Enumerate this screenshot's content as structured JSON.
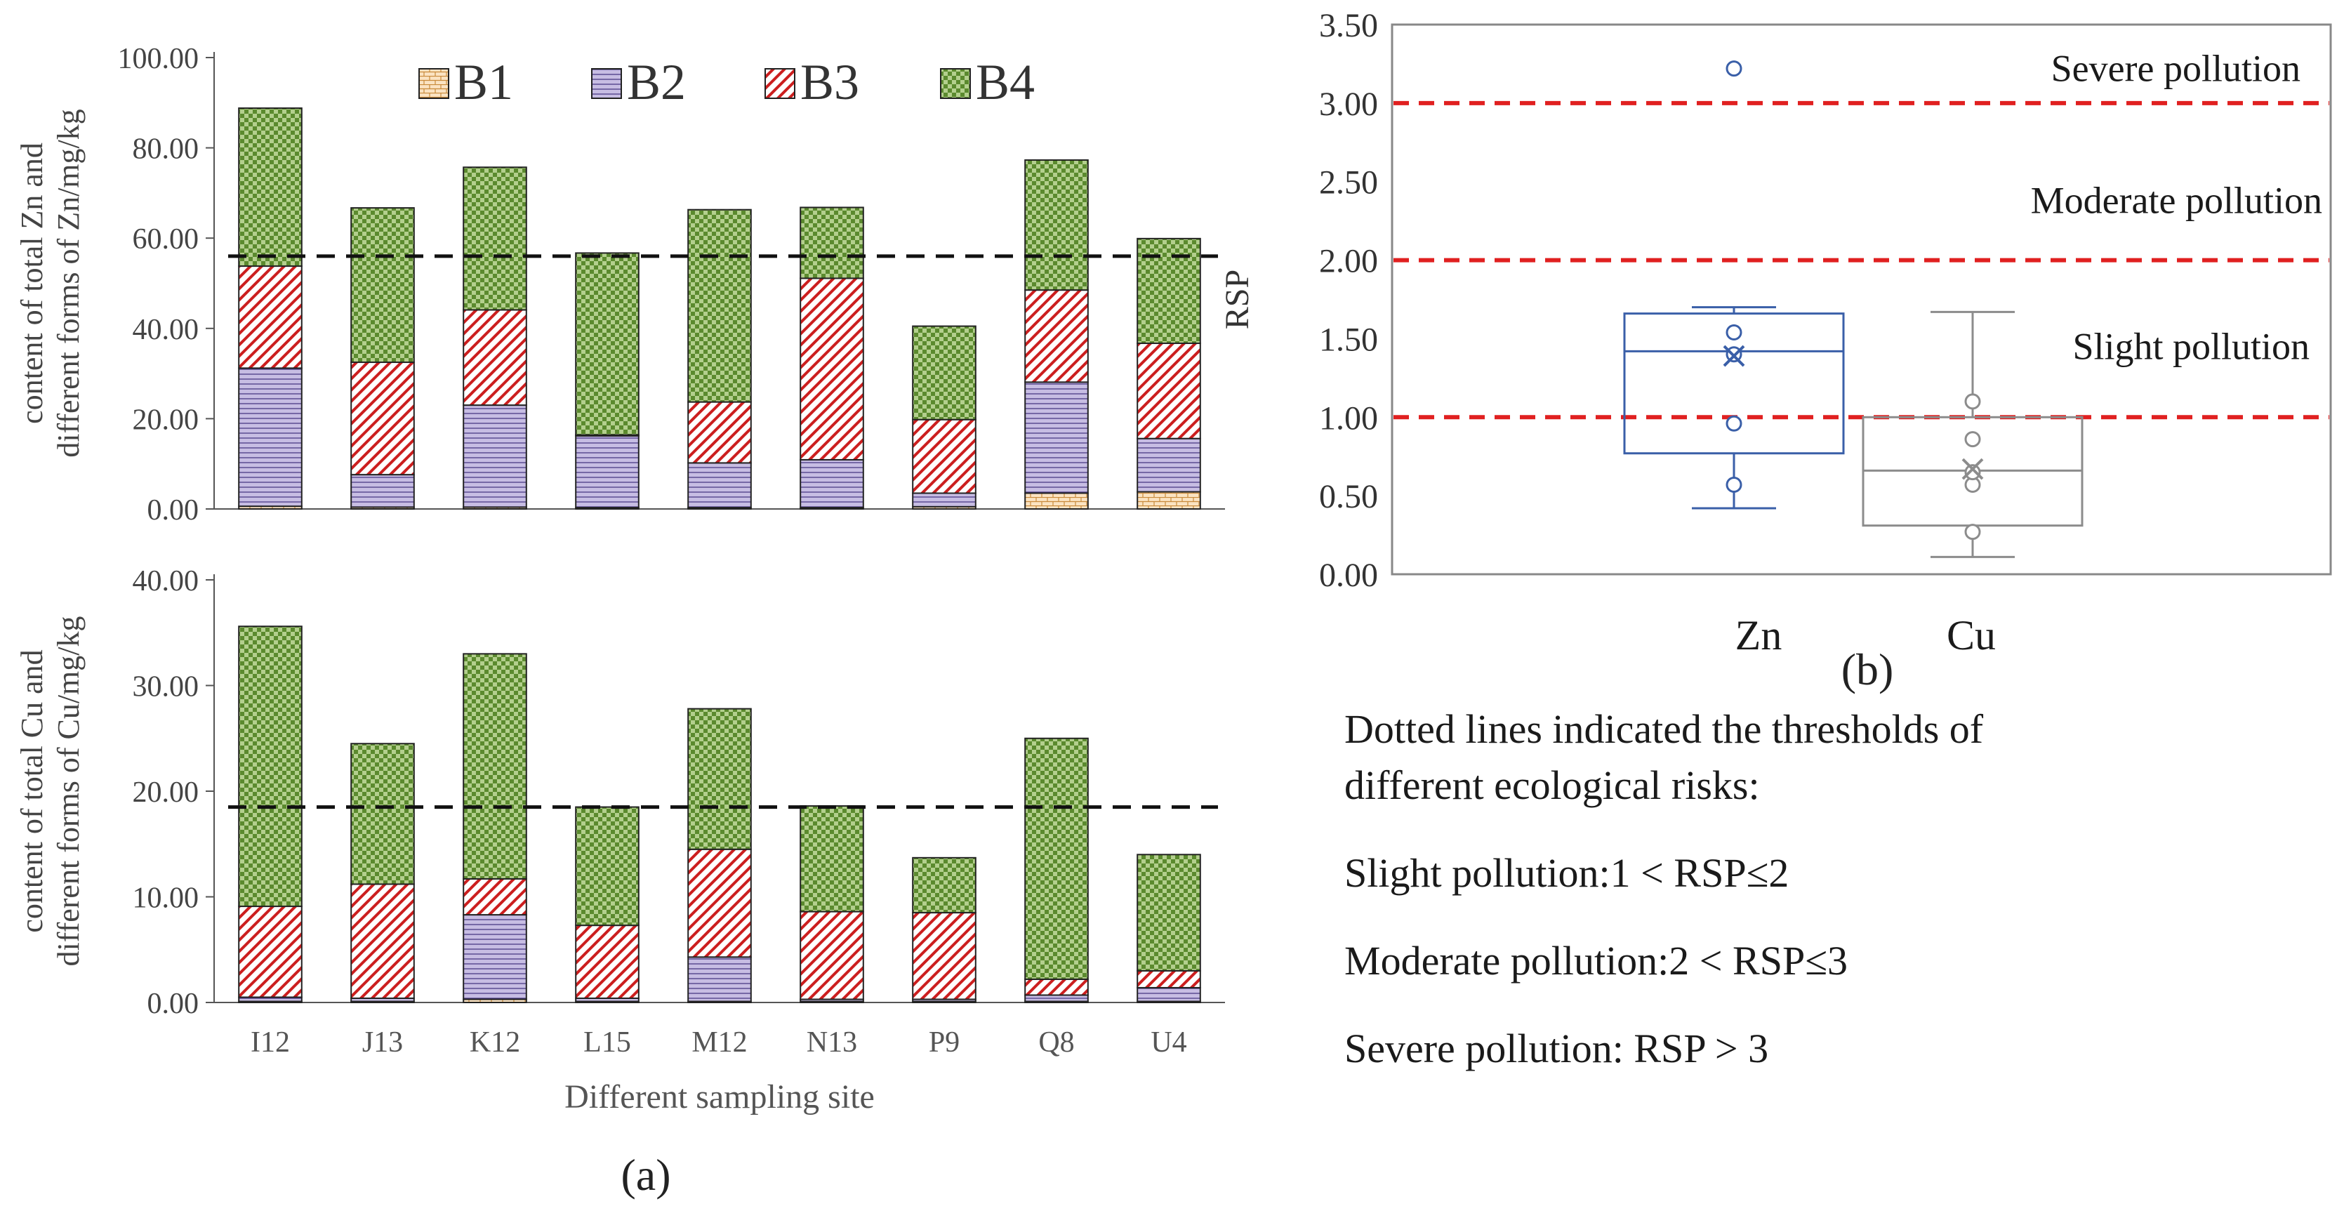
{
  "panel_a_label": "(a)",
  "panel_b_label": "(b)",
  "legend": [
    {
      "key": "B1",
      "fill": "#fbe3c2",
      "pattern": "bricks"
    },
    {
      "key": "B2",
      "fill": "#c7bde3",
      "pattern": "hlines"
    },
    {
      "key": "B3",
      "fill": "#ffffff",
      "pattern": "diag-red"
    },
    {
      "key": "B4",
      "fill": "#b3cf8d",
      "pattern": "checker"
    }
  ],
  "colors": {
    "b1": "#fbe3c2",
    "b1_line": "#c98a3a",
    "b2": "#c7bde3",
    "b2_line": "#4b3b85",
    "b3_line": "#cc1f1f",
    "b4": "#b3cf8d",
    "b4_line": "#5b8a2e",
    "zn": "#3a5fa8",
    "cu": "#8c8c8c",
    "threshold": "#e02020"
  },
  "chart_data": [
    {
      "id": "zn_bars",
      "type": "bar",
      "stacked": true,
      "categories": [
        "I12",
        "J13",
        "K12",
        "L15",
        "M12",
        "N13",
        "P9",
        "Q8",
        "U4"
      ],
      "series": [
        {
          "name": "B1",
          "values": [
            0.6,
            0.4,
            0.4,
            0.3,
            0.3,
            0.3,
            0.5,
            3.5,
            3.8
          ]
        },
        {
          "name": "B2",
          "values": [
            30.6,
            7.2,
            22.6,
            15.9,
            9.9,
            10.6,
            3.0,
            24.6,
            11.8
          ]
        },
        {
          "name": "B3",
          "values": [
            22.6,
            24.9,
            21.1,
            0.2,
            13.5,
            40.2,
            16.3,
            20.4,
            21.1
          ]
        },
        {
          "name": "B4",
          "values": [
            35.0,
            34.2,
            31.6,
            40.3,
            42.6,
            15.7,
            20.7,
            28.8,
            23.2
          ]
        }
      ],
      "threshold": 56.0,
      "ylabel": "content of total Zn and different forms of Zn/mg/kg",
      "ylim": [
        0,
        100
      ],
      "ytick_labels": [
        "0.00",
        "20.00",
        "40.00",
        "60.00",
        "80.00",
        "100.00"
      ]
    },
    {
      "id": "cu_bars",
      "type": "bar",
      "stacked": true,
      "categories": [
        "I12",
        "J13",
        "K12",
        "L15",
        "M12",
        "N13",
        "P9",
        "Q8",
        "U4"
      ],
      "series": [
        {
          "name": "B1",
          "values": [
            0.1,
            0.1,
            0.3,
            0.1,
            0.1,
            0.1,
            0.1,
            0.1,
            0.1
          ]
        },
        {
          "name": "B2",
          "values": [
            0.4,
            0.3,
            8.0,
            0.3,
            4.2,
            0.2,
            0.2,
            0.6,
            1.3
          ]
        },
        {
          "name": "B3",
          "values": [
            8.6,
            10.8,
            3.4,
            6.9,
            10.2,
            8.3,
            8.2,
            1.5,
            1.6
          ]
        },
        {
          "name": "B4",
          "values": [
            26.5,
            13.3,
            21.3,
            11.2,
            13.3,
            10.0,
            5.2,
            22.8,
            11.0
          ]
        }
      ],
      "threshold": 18.5,
      "ylabel": "content of total Cu and different forms of Cu/mg/kg",
      "xlabel": "Different sampling site",
      "ylim": [
        0,
        40
      ],
      "ytick_labels": [
        "0.00",
        "10.00",
        "20.00",
        "30.00",
        "40.00"
      ]
    },
    {
      "id": "rsp_box",
      "type": "box",
      "categories": [
        "Zn",
        "Cu"
      ],
      "boxes": [
        {
          "name": "Zn",
          "min": 0.42,
          "q1": 0.77,
          "median": 1.42,
          "q3": 1.66,
          "max": 1.7,
          "mean": 1.39,
          "points": [
            0.57,
            0.96,
            1.4,
            1.54
          ],
          "outliers": [
            3.22
          ]
        },
        {
          "name": "Cu",
          "min": 0.11,
          "q1": 0.31,
          "median": 0.66,
          "q3": 1.0,
          "max": 1.67,
          "mean": 0.67,
          "points": [
            0.27,
            0.57,
            0.65,
            0.86,
            1.1
          ],
          "outliers": []
        }
      ],
      "ylabel": "RSP",
      "ylim": [
        0,
        3.5
      ],
      "ytick_labels": [
        "0.00",
        "0.50",
        "1.00",
        "1.50",
        "2.00",
        "2.50",
        "3.00",
        "3.50"
      ],
      "thresholds": [
        1,
        2,
        3
      ],
      "zone_labels": [
        "Severe pollution",
        "Moderate pollution",
        "Slight pollution"
      ]
    }
  ],
  "notes": {
    "line1": "Dotted lines indicated the thresholds of",
    "line2": "different ecological risks:",
    "line3": "Slight pollution:1 < RSP≤2",
    "line4": "Moderate pollution:2 < RSP≤3",
    "line5": "Severe pollution: RSP > 3"
  }
}
